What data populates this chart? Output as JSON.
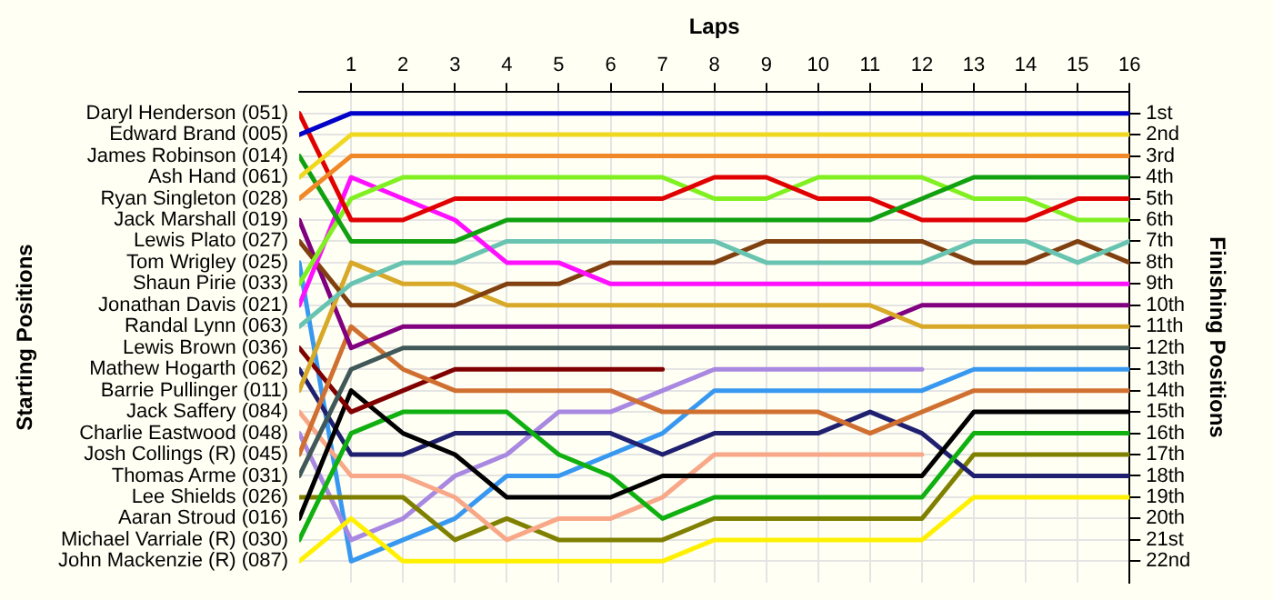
{
  "chart_data": {
    "type": "line",
    "xlabel": "Laps",
    "y2label": "Finishing Positions",
    "x": [
      0,
      1,
      2,
      3,
      4,
      5,
      6,
      7,
      8,
      9,
      10,
      11,
      12,
      13,
      14,
      15,
      16
    ],
    "xlim": [
      0,
      16
    ],
    "xticks": [
      1,
      2,
      3,
      4,
      5,
      6,
      7,
      8,
      9,
      10,
      11,
      12,
      13,
      14,
      15,
      16
    ],
    "ylim": [
      23,
      0
    ],
    "yticks": [
      {
        "value": 1,
        "label": "1st"
      },
      {
        "value": 2,
        "label": "2nd"
      },
      {
        "value": 3,
        "label": "3rd"
      },
      {
        "value": 4,
        "label": "4th"
      },
      {
        "value": 5,
        "label": "5th"
      },
      {
        "value": 6,
        "label": "6th"
      },
      {
        "value": 7,
        "label": "7th"
      },
      {
        "value": 8,
        "label": "8th"
      },
      {
        "value": 9,
        "label": "9th"
      },
      {
        "value": 10,
        "label": "10th"
      },
      {
        "value": 11,
        "label": "11th"
      },
      {
        "value": 12,
        "label": "12th"
      },
      {
        "value": 13,
        "label": "13th"
      },
      {
        "value": 14,
        "label": "14th"
      },
      {
        "value": 15,
        "label": "15th"
      },
      {
        "value": 16,
        "label": "16th"
      },
      {
        "value": 17,
        "label": "17th"
      },
      {
        "value": 18,
        "label": "18th"
      },
      {
        "value": 19,
        "label": "19th"
      },
      {
        "value": 20,
        "label": "20th"
      },
      {
        "value": 21,
        "label": "21st"
      },
      {
        "value": 22,
        "label": "22nd"
      }
    ],
    "annotations": [
      "Starting Positions",
      "Daryl Henderson (051)",
      "Edward Brand (005)",
      "James Robinson (014)",
      "Ash Hand (061)",
      "Ryan Singleton (028)",
      "Jack Marshall (019)",
      "Lewis Plato (027)",
      "Tom Wrigley (025)",
      "Shaun Pirie (033)",
      "Jonathan Davis (021)",
      "Randal Lynn (063)",
      "Lewis Brown (036)",
      "Mathew Hogarth (062)",
      "Barrie Pullinger (011)",
      "Jack Saffery (084)",
      "Charlie Eastwood (048)",
      "Josh Collings (R) (045)",
      "Thomas Arme (031)",
      "Lee Shields (026)",
      "Aaran Stroud (016)",
      "Michael Varriale (R) (030)",
      "John Mackenzie (R) (087)"
    ],
    "grid": true,
    "legend": false,
    "marker": "none",
    "line_style": "solid",
    "series": [
      {
        "color": "#0000c8",
        "values": [
          2,
          1,
          1,
          1,
          1,
          1,
          1,
          1,
          1,
          1,
          1,
          1,
          1,
          1,
          1,
          1,
          1
        ]
      },
      {
        "color": "#f0d820",
        "values": [
          4,
          2,
          2,
          2,
          2,
          2,
          2,
          2,
          2,
          2,
          2,
          2,
          2,
          2,
          2,
          2,
          2
        ]
      },
      {
        "color": "#f08828",
        "values": [
          5,
          3,
          3,
          3,
          3,
          3,
          3,
          3,
          3,
          3,
          3,
          3,
          3,
          3,
          3,
          3,
          3
        ]
      },
      {
        "color": "#10a010",
        "values": [
          3,
          7,
          7,
          7,
          6,
          6,
          6,
          6,
          6,
          6,
          6,
          6,
          5,
          4,
          4,
          4,
          4
        ]
      },
      {
        "color": "#e00000",
        "values": [
          1,
          6,
          6,
          5,
          5,
          5,
          5,
          5,
          4,
          4,
          5,
          5,
          6,
          6,
          6,
          5,
          5
        ]
      },
      {
        "color": "#80f020",
        "values": [
          9,
          5,
          4,
          4,
          4,
          4,
          4,
          4,
          5,
          5,
          4,
          4,
          4,
          5,
          5,
          6,
          6
        ]
      },
      {
        "color": "#ff10ff",
        "values": [
          10,
          4,
          5,
          6,
          8,
          8,
          9,
          9,
          9,
          9,
          9,
          9,
          9,
          9,
          9,
          9,
          9
        ]
      },
      {
        "color": "#68c4b0",
        "values": [
          11,
          9,
          8,
          8,
          7,
          7,
          7,
          7,
          7,
          8,
          8,
          8,
          8,
          7,
          7,
          8,
          7
        ]
      },
      {
        "color": "#804010",
        "values": [
          7,
          10,
          10,
          10,
          9,
          9,
          8,
          8,
          8,
          7,
          7,
          7,
          7,
          8,
          8,
          7,
          8
        ]
      },
      {
        "color": "#d8a828",
        "values": [
          14,
          8,
          9,
          9,
          10,
          10,
          10,
          10,
          10,
          10,
          10,
          10,
          11,
          11,
          11,
          11,
          11
        ]
      },
      {
        "color": "#800080",
        "values": [
          6,
          12,
          11,
          11,
          11,
          11,
          11,
          11,
          11,
          11,
          11,
          11,
          10,
          10,
          10,
          10,
          10
        ]
      },
      {
        "color": "#405858",
        "values": [
          18,
          13,
          12,
          12,
          12,
          12,
          12,
          12,
          12,
          12,
          12,
          12,
          12,
          12,
          12,
          12,
          12
        ]
      },
      {
        "color": "#d07030",
        "values": [
          17,
          11,
          13,
          14,
          14,
          14,
          14,
          15,
          15,
          15,
          15,
          16,
          15,
          14,
          14,
          14,
          14
        ]
      },
      {
        "color": "#800000",
        "values": [
          12,
          15,
          14,
          13,
          13,
          13,
          13,
          13,
          null,
          null,
          null,
          null,
          null,
          null,
          null,
          null,
          null
        ]
      },
      {
        "color": "#000000",
        "values": [
          20,
          14,
          16,
          17,
          19,
          19,
          19,
          18,
          18,
          18,
          18,
          18,
          18,
          15,
          15,
          15,
          15
        ]
      },
      {
        "color": "#10b010",
        "values": [
          21,
          16,
          15,
          15,
          15,
          17,
          18,
          20,
          19,
          19,
          19,
          19,
          19,
          16,
          16,
          16,
          16
        ]
      },
      {
        "color": "#202070",
        "values": [
          13,
          17,
          17,
          16,
          16,
          16,
          16,
          17,
          16,
          16,
          16,
          15,
          16,
          18,
          18,
          18,
          18
        ]
      },
      {
        "color": "#f8a888",
        "values": [
          15,
          18,
          18,
          19,
          21,
          20,
          20,
          19,
          17,
          17,
          17,
          17,
          17,
          null,
          null,
          null,
          null
        ]
      },
      {
        "color": "#808000",
        "values": [
          19,
          19,
          19,
          21,
          20,
          21,
          21,
          21,
          20,
          20,
          20,
          20,
          20,
          17,
          17,
          17,
          17
        ]
      },
      {
        "color": "#fff000",
        "values": [
          22,
          20,
          22,
          22,
          22,
          22,
          22,
          22,
          21,
          21,
          21,
          21,
          21,
          19,
          19,
          19,
          19
        ]
      },
      {
        "color": "#a888e0",
        "values": [
          16,
          21,
          20,
          18,
          17,
          15,
          15,
          14,
          13,
          13,
          13,
          13,
          13,
          null,
          null,
          null,
          null
        ]
      },
      {
        "color": "#3898f0",
        "values": [
          8,
          22,
          21,
          20,
          18,
          18,
          17,
          16,
          14,
          14,
          14,
          14,
          14,
          13,
          13,
          13,
          13
        ]
      }
    ]
  }
}
